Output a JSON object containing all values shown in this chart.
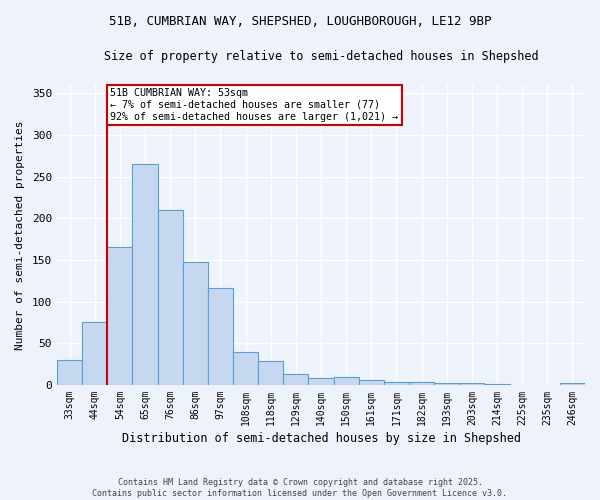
{
  "title_line1": "51B, CUMBRIAN WAY, SHEPSHED, LOUGHBOROUGH, LE12 9BP",
  "title_line2": "Size of property relative to semi-detached houses in Shepshed",
  "xlabel": "Distribution of semi-detached houses by size in Shepshed",
  "ylabel": "Number of semi-detached properties",
  "categories": [
    "33sqm",
    "44sqm",
    "54sqm",
    "65sqm",
    "76sqm",
    "86sqm",
    "97sqm",
    "108sqm",
    "118sqm",
    "129sqm",
    "140sqm",
    "150sqm",
    "161sqm",
    "171sqm",
    "182sqm",
    "193sqm",
    "203sqm",
    "214sqm",
    "225sqm",
    "235sqm",
    "246sqm"
  ],
  "values": [
    30,
    76,
    165,
    265,
    210,
    147,
    116,
    39,
    29,
    13,
    8,
    10,
    6,
    4,
    3,
    2,
    2,
    1,
    0,
    0,
    2
  ],
  "bar_color": "#c5d8f0",
  "bar_edge_color": "#5a9fd4",
  "red_line_x": 1.5,
  "annotation_title": "51B CUMBRIAN WAY: 53sqm",
  "annotation_line1": "← 7% of semi-detached houses are smaller (77)",
  "annotation_line2": "92% of semi-detached houses are larger (1,021) →",
  "footnote_line1": "Contains HM Land Registry data © Crown copyright and database right 2025.",
  "footnote_line2": "Contains public sector information licensed under the Open Government Licence v3.0.",
  "ylim": [
    0,
    360
  ],
  "yticks": [
    0,
    50,
    100,
    150,
    200,
    250,
    300,
    350
  ],
  "background_color": "#eef2fa",
  "grid_color": "#ffffff",
  "annotation_box_color": "#ffffff",
  "annotation_box_edge_color": "#cc0000"
}
